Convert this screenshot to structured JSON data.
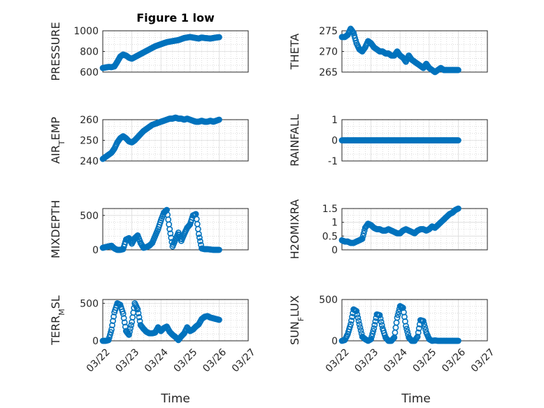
{
  "figure": {
    "title": "Figure 1 low",
    "xlabel": "Time"
  },
  "chart_data": [
    {
      "id": "pressure",
      "type": "scatter",
      "title": "Figure 1 low",
      "ylabel_parts": [
        [
          "PRESSURE",
          null
        ]
      ],
      "ylim": [
        600,
        1000
      ],
      "yticks": [
        600,
        800,
        1000
      ],
      "xlim": [
        0,
        5
      ],
      "xticks": [],
      "grid": true,
      "marker": "circle",
      "color": "#0072BD",
      "x": [
        0.0,
        0.1,
        0.2,
        0.3,
        0.4,
        0.5,
        0.6,
        0.7,
        0.8,
        0.9,
        1.0,
        1.1,
        1.2,
        1.3,
        1.4,
        1.5,
        1.6,
        1.7,
        1.8,
        1.9,
        2.0,
        2.1,
        2.2,
        2.3,
        2.4,
        2.5,
        2.6,
        2.7,
        2.8,
        2.9,
        3.0,
        3.1,
        3.2,
        3.3,
        3.4,
        3.5,
        3.6,
        3.7,
        3.8,
        3.9,
        4.0
      ],
      "y": [
        640,
        645,
        650,
        648,
        655,
        700,
        750,
        770,
        760,
        740,
        730,
        745,
        760,
        775,
        790,
        805,
        820,
        835,
        850,
        860,
        870,
        880,
        890,
        895,
        900,
        905,
        910,
        920,
        930,
        935,
        940,
        935,
        930,
        925,
        935,
        930,
        928,
        925,
        930,
        935,
        938
      ]
    },
    {
      "id": "theta",
      "type": "scatter",
      "ylabel_parts": [
        [
          "THETA",
          null
        ]
      ],
      "ylim": [
        265,
        275
      ],
      "yticks": [
        265,
        270,
        275
      ],
      "xlim": [
        0,
        5
      ],
      "xticks": [],
      "grid": true,
      "marker": "circle",
      "color": "#0072BD",
      "x": [
        0.0,
        0.1,
        0.2,
        0.3,
        0.4,
        0.5,
        0.6,
        0.7,
        0.8,
        0.9,
        1.0,
        1.1,
        1.2,
        1.3,
        1.4,
        1.5,
        1.6,
        1.7,
        1.8,
        1.9,
        2.0,
        2.1,
        2.2,
        2.3,
        2.4,
        2.5,
        2.6,
        2.7,
        2.8,
        2.9,
        3.0,
        3.1,
        3.2,
        3.3,
        3.4,
        3.5,
        3.6,
        3.7,
        3.8,
        3.9,
        4.0
      ],
      "y": [
        273.5,
        273.5,
        274,
        275.5,
        274.5,
        272,
        270.5,
        270,
        271,
        272.5,
        272,
        271,
        270.5,
        270,
        270,
        269.5,
        269.5,
        269,
        269,
        270,
        269,
        268.5,
        267.5,
        269,
        268,
        267.5,
        267,
        266.5,
        266,
        267,
        266,
        265.5,
        265,
        265.5,
        266,
        265.5,
        265.5,
        265.5,
        265.5,
        265.5,
        265.5
      ]
    },
    {
      "id": "air_temp",
      "type": "scatter",
      "ylabel_parts": [
        [
          "AIR",
          null
        ],
        [
          "T",
          "sub"
        ],
        [
          "EMP",
          null
        ]
      ],
      "ylim": [
        240,
        260
      ],
      "yticks": [
        240,
        250,
        260
      ],
      "xlim": [
        0,
        5
      ],
      "xticks": [],
      "grid": true,
      "marker": "circle",
      "color": "#0072BD",
      "x": [
        0.0,
        0.1,
        0.2,
        0.3,
        0.4,
        0.5,
        0.6,
        0.7,
        0.8,
        0.9,
        1.0,
        1.1,
        1.2,
        1.3,
        1.4,
        1.5,
        1.6,
        1.7,
        1.8,
        1.9,
        2.0,
        2.1,
        2.2,
        2.3,
        2.4,
        2.5,
        2.6,
        2.7,
        2.8,
        2.9,
        3.0,
        3.1,
        3.2,
        3.3,
        3.4,
        3.5,
        3.6,
        3.7,
        3.8,
        3.9,
        4.0
      ],
      "y": [
        241,
        242,
        243,
        244,
        246,
        249,
        251,
        252,
        251,
        249.5,
        249,
        250,
        251.5,
        253,
        254.5,
        255.5,
        256.5,
        257.5,
        258,
        258.5,
        259,
        259.5,
        260,
        260.5,
        260.5,
        261,
        260.5,
        260.5,
        260,
        260.5,
        260,
        259.5,
        259,
        259,
        259.5,
        259,
        259,
        259.5,
        259,
        259.5,
        260
      ]
    },
    {
      "id": "rainfall",
      "type": "scatter",
      "ylabel_parts": [
        [
          "RAINFALL",
          null
        ]
      ],
      "ylim": [
        -1,
        1
      ],
      "yticks": [
        -1,
        0,
        1
      ],
      "xlim": [
        0,
        5
      ],
      "xticks": [],
      "grid": true,
      "marker": "circle",
      "color": "#0072BD",
      "x": [
        0.0,
        0.1,
        0.2,
        0.3,
        0.4,
        0.5,
        0.6,
        0.7,
        0.8,
        0.9,
        1.0,
        1.1,
        1.2,
        1.3,
        1.4,
        1.5,
        1.6,
        1.7,
        1.8,
        1.9,
        2.0,
        2.1,
        2.2,
        2.3,
        2.4,
        2.5,
        2.6,
        2.7,
        2.8,
        2.9,
        3.0,
        3.1,
        3.2,
        3.3,
        3.4,
        3.5,
        3.6,
        3.7,
        3.8,
        3.9,
        4.0
      ],
      "y": [
        0,
        0,
        0,
        0,
        0,
        0,
        0,
        0,
        0,
        0,
        0,
        0,
        0,
        0,
        0,
        0,
        0,
        0,
        0,
        0,
        0,
        0,
        0,
        0,
        0,
        0,
        0,
        0,
        0,
        0,
        0,
        0,
        0,
        0,
        0,
        0,
        0,
        0,
        0,
        0,
        0
      ]
    },
    {
      "id": "mixdepth",
      "type": "scatter",
      "ylabel_parts": [
        [
          "MIXDEPTH",
          null
        ]
      ],
      "ylim": [
        0,
        600
      ],
      "yticks": [
        0,
        500
      ],
      "xlim": [
        0,
        5
      ],
      "xticks": [],
      "grid": true,
      "marker": "circle",
      "color": "#0072BD",
      "x": [
        0.0,
        0.1,
        0.2,
        0.3,
        0.4,
        0.5,
        0.6,
        0.7,
        0.8,
        0.9,
        1.0,
        1.1,
        1.2,
        1.3,
        1.4,
        1.5,
        1.6,
        1.7,
        1.8,
        1.9,
        2.0,
        2.1,
        2.2,
        2.3,
        2.4,
        2.5,
        2.6,
        2.7,
        2.8,
        2.9,
        3.0,
        3.1,
        3.2,
        3.3,
        3.4,
        3.5,
        3.6,
        3.7,
        3.8,
        3.9,
        4.0
      ],
      "y": [
        30,
        40,
        50,
        60,
        20,
        0,
        0,
        10,
        150,
        170,
        90,
        170,
        210,
        100,
        30,
        40,
        60,
        100,
        200,
        300,
        430,
        540,
        580,
        300,
        50,
        150,
        250,
        130,
        230,
        320,
        370,
        500,
        520,
        230,
        20,
        10,
        10,
        5,
        0,
        0,
        0
      ]
    },
    {
      "id": "h2omixra",
      "type": "scatter",
      "ylabel_parts": [
        [
          "H2OMIXRA",
          null
        ]
      ],
      "ylim": [
        0,
        1.5
      ],
      "yticks": [
        0,
        0.5,
        1,
        1.5
      ],
      "xlim": [
        0,
        5
      ],
      "xticks": [],
      "grid": true,
      "marker": "circle",
      "color": "#0072BD",
      "x": [
        0.0,
        0.1,
        0.2,
        0.3,
        0.4,
        0.5,
        0.6,
        0.7,
        0.8,
        0.9,
        1.0,
        1.1,
        1.2,
        1.3,
        1.4,
        1.5,
        1.6,
        1.7,
        1.8,
        1.9,
        2.0,
        2.1,
        2.2,
        2.3,
        2.4,
        2.5,
        2.6,
        2.7,
        2.8,
        2.9,
        3.0,
        3.1,
        3.2,
        3.3,
        3.4,
        3.5,
        3.6,
        3.7,
        3.8,
        3.9,
        4.0
      ],
      "y": [
        0.35,
        0.3,
        0.3,
        0.25,
        0.25,
        0.3,
        0.35,
        0.4,
        0.8,
        0.95,
        0.9,
        0.8,
        0.75,
        0.75,
        0.7,
        0.7,
        0.75,
        0.7,
        0.65,
        0.6,
        0.6,
        0.7,
        0.75,
        0.7,
        0.65,
        0.6,
        0.7,
        0.75,
        0.75,
        0.7,
        0.75,
        0.85,
        0.8,
        0.9,
        1.0,
        1.1,
        1.2,
        1.3,
        1.35,
        1.45,
        1.5
      ]
    },
    {
      "id": "terr_msl",
      "type": "scatter",
      "ylabel_parts": [
        [
          "TERR",
          null
        ],
        [
          "M",
          "sub"
        ],
        [
          "SL",
          null
        ]
      ],
      "ylim": [
        0,
        550
      ],
      "yticks": [
        0,
        500
      ],
      "xlim": [
        0,
        5
      ],
      "xticks": [
        "03/22",
        "03/23",
        "03/24",
        "03/25",
        "03/26",
        "03/27"
      ],
      "grid": true,
      "marker": "circle",
      "color": "#0072BD",
      "x": [
        0.0,
        0.1,
        0.2,
        0.3,
        0.4,
        0.5,
        0.6,
        0.7,
        0.8,
        0.9,
        1.0,
        1.1,
        1.2,
        1.3,
        1.4,
        1.5,
        1.6,
        1.7,
        1.8,
        1.9,
        2.0,
        2.1,
        2.2,
        2.3,
        2.4,
        2.5,
        2.6,
        2.7,
        2.8,
        2.9,
        3.0,
        3.1,
        3.2,
        3.3,
        3.4,
        3.5,
        3.6,
        3.7,
        3.8,
        3.9,
        4.0
      ],
      "y": [
        0,
        0,
        10,
        150,
        380,
        500,
        480,
        360,
        130,
        80,
        250,
        500,
        420,
        210,
        160,
        120,
        100,
        100,
        110,
        180,
        130,
        170,
        190,
        120,
        80,
        50,
        10,
        60,
        100,
        180,
        130,
        150,
        190,
        220,
        290,
        320,
        330,
        310,
        300,
        290,
        280
      ]
    },
    {
      "id": "sun_flux",
      "type": "scatter",
      "ylabel_parts": [
        [
          "SUN",
          null
        ],
        [
          "F",
          "sub"
        ],
        [
          "LUX",
          null
        ]
      ],
      "ylim": [
        0,
        500
      ],
      "yticks": [
        0,
        500
      ],
      "xlim": [
        0,
        5
      ],
      "xticks": [
        "03/22",
        "03/23",
        "03/24",
        "03/25",
        "03/26",
        "03/27"
      ],
      "grid": true,
      "marker": "circle",
      "color": "#0072BD",
      "x": [
        0.0,
        0.1,
        0.2,
        0.3,
        0.4,
        0.5,
        0.6,
        0.7,
        0.8,
        0.9,
        1.0,
        1.1,
        1.2,
        1.3,
        1.4,
        1.5,
        1.6,
        1.7,
        1.8,
        1.9,
        2.0,
        2.1,
        2.2,
        2.3,
        2.4,
        2.5,
        2.6,
        2.7,
        2.8,
        2.9,
        3.0,
        3.1,
        3.2,
        3.3,
        3.4,
        3.5,
        3.6,
        3.7,
        3.8,
        3.9,
        4.0
      ],
      "y": [
        0,
        10,
        80,
        200,
        380,
        360,
        200,
        50,
        20,
        0,
        20,
        150,
        320,
        310,
        150,
        40,
        0,
        0,
        40,
        280,
        420,
        400,
        180,
        40,
        0,
        0,
        50,
        250,
        240,
        100,
        20,
        0,
        5,
        0,
        0,
        0,
        0,
        0,
        0,
        0,
        0
      ]
    }
  ]
}
